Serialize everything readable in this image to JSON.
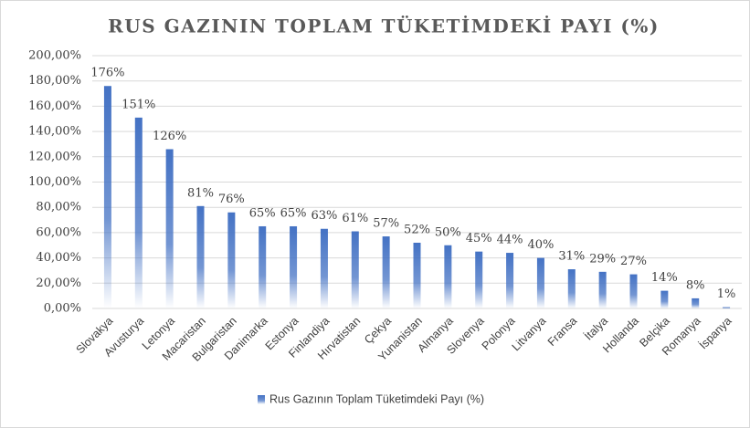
{
  "chart_data": {
    "type": "bar",
    "title": "RUS GAZININ TOPLAM TÜKETİMDEKİ PAYI (%)",
    "categories": [
      "Slovakya",
      "Avusturya",
      "Letonya",
      "Macaristan",
      "Bulgaristan",
      "Danimarka",
      "Estonya",
      "Finlandiya",
      "Hırvatistan",
      "Çekya",
      "Yunanistan",
      "Almanya",
      "Slovenya",
      "Polonya",
      "Litvanya",
      "Fransa",
      "İtalya",
      "Hollanda",
      "Belçika",
      "Romanya",
      "İspanya"
    ],
    "series": [
      {
        "name": "Rus Gazının Toplam Tüketimdeki Payı (%)",
        "color": "#4472c4",
        "values": [
          176,
          151,
          126,
          81,
          76,
          65,
          65,
          63,
          61,
          57,
          52,
          50,
          45,
          44,
          40,
          31,
          29,
          27,
          14,
          8,
          1
        ],
        "value_labels": [
          "176%",
          "151%",
          "126%",
          "81%",
          "76%",
          "65%",
          "65%",
          "63%",
          "61%",
          "57%",
          "52%",
          "50%",
          "45%",
          "44%",
          "40%",
          "31%",
          "29%",
          "27%",
          "14%",
          "8%",
          "1%"
        ]
      }
    ],
    "ylim": [
      0,
      200
    ],
    "yticks": [
      {
        "value": 0,
        "label": "0,00%"
      },
      {
        "value": 20,
        "label": "20,00%"
      },
      {
        "value": 40,
        "label": "40,00%"
      },
      {
        "value": 60,
        "label": "60,00%"
      },
      {
        "value": 80,
        "label": "80,00%"
      },
      {
        "value": 100,
        "label": "100,00%"
      },
      {
        "value": 120,
        "label": "120,00%"
      },
      {
        "value": 140,
        "label": "140,00%"
      },
      {
        "value": 160,
        "label": "160,00%"
      },
      {
        "value": 180,
        "label": "180,00%"
      },
      {
        "value": 200,
        "label": "200,00%"
      }
    ],
    "grid": true,
    "legend": "bottom"
  }
}
